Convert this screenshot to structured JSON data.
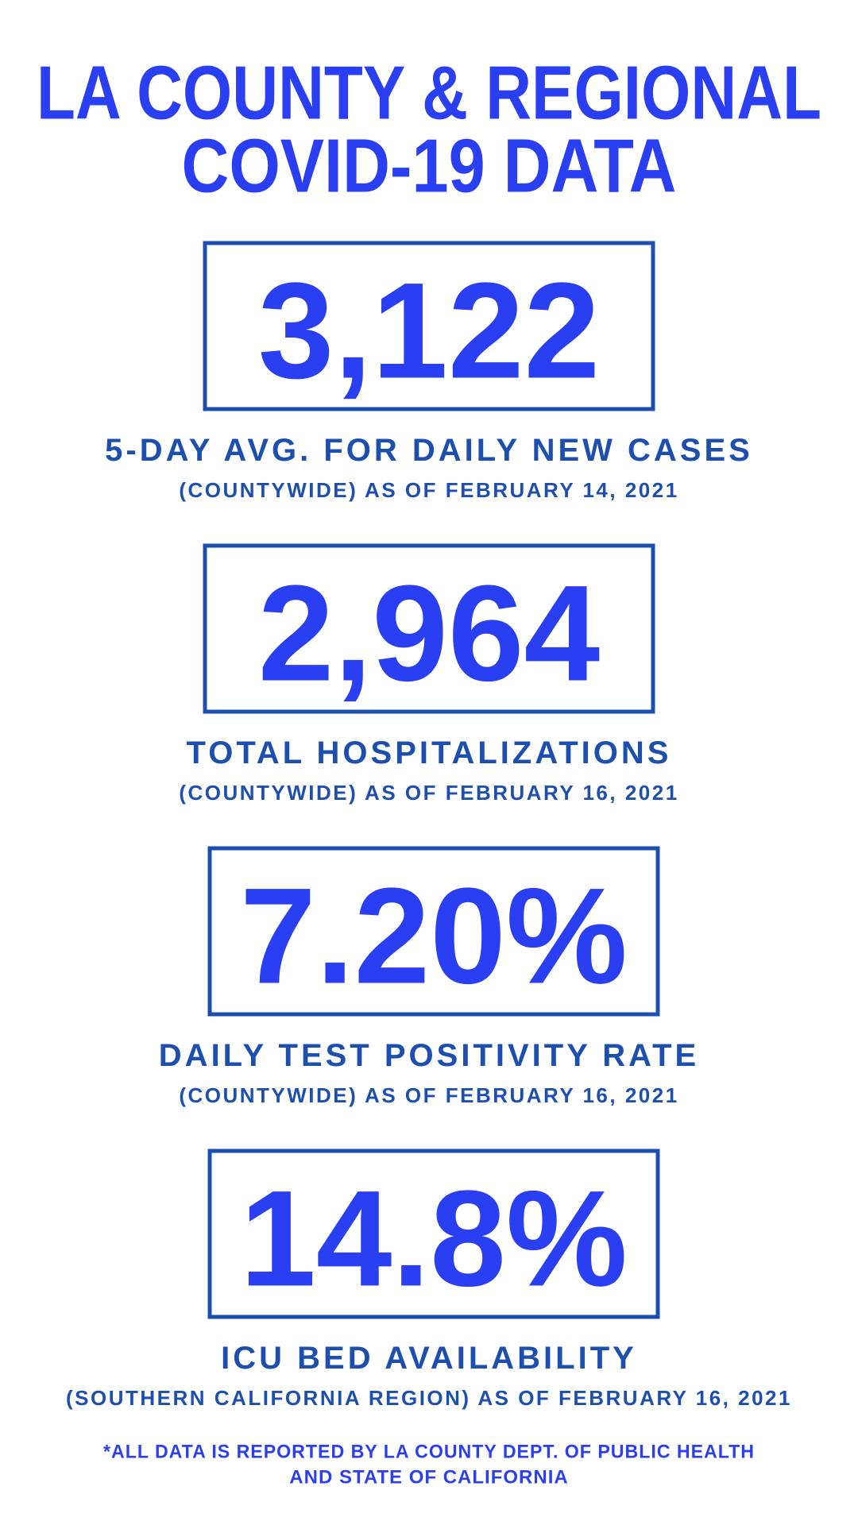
{
  "header": {
    "title_lines": [
      "LA COUNTY & REGIONAL",
      "COVID-19 DATA"
    ]
  },
  "stats": [
    {
      "value": "3,122",
      "label": "5-DAY AVG. FOR DAILY NEW CASES",
      "note": "(COUNTYWIDE) AS OF FEBRUARY 14, 2021"
    },
    {
      "value": "2,964",
      "label": "TOTAL HOSPITALIZATIONS",
      "note": "(COUNTYWIDE) AS OF FEBRUARY 16, 2021"
    },
    {
      "value": "7.20%",
      "label": "DAILY TEST POSITIVITY RATE",
      "note": "(COUNTYWIDE) AS OF FEBRUARY 16, 2021"
    },
    {
      "value": "14.8%",
      "label": "ICU BED AVAILABILITY",
      "note": "(SOUTHERN CALIFORNIA REGION) AS OF FEBRUARY 16, 2021"
    }
  ],
  "footnote": [
    "*ALL DATA IS REPORTED BY LA COUNTY DEPT. OF PUBLIC HEALTH",
    "AND STATE OF CALIFORNIA"
  ]
}
